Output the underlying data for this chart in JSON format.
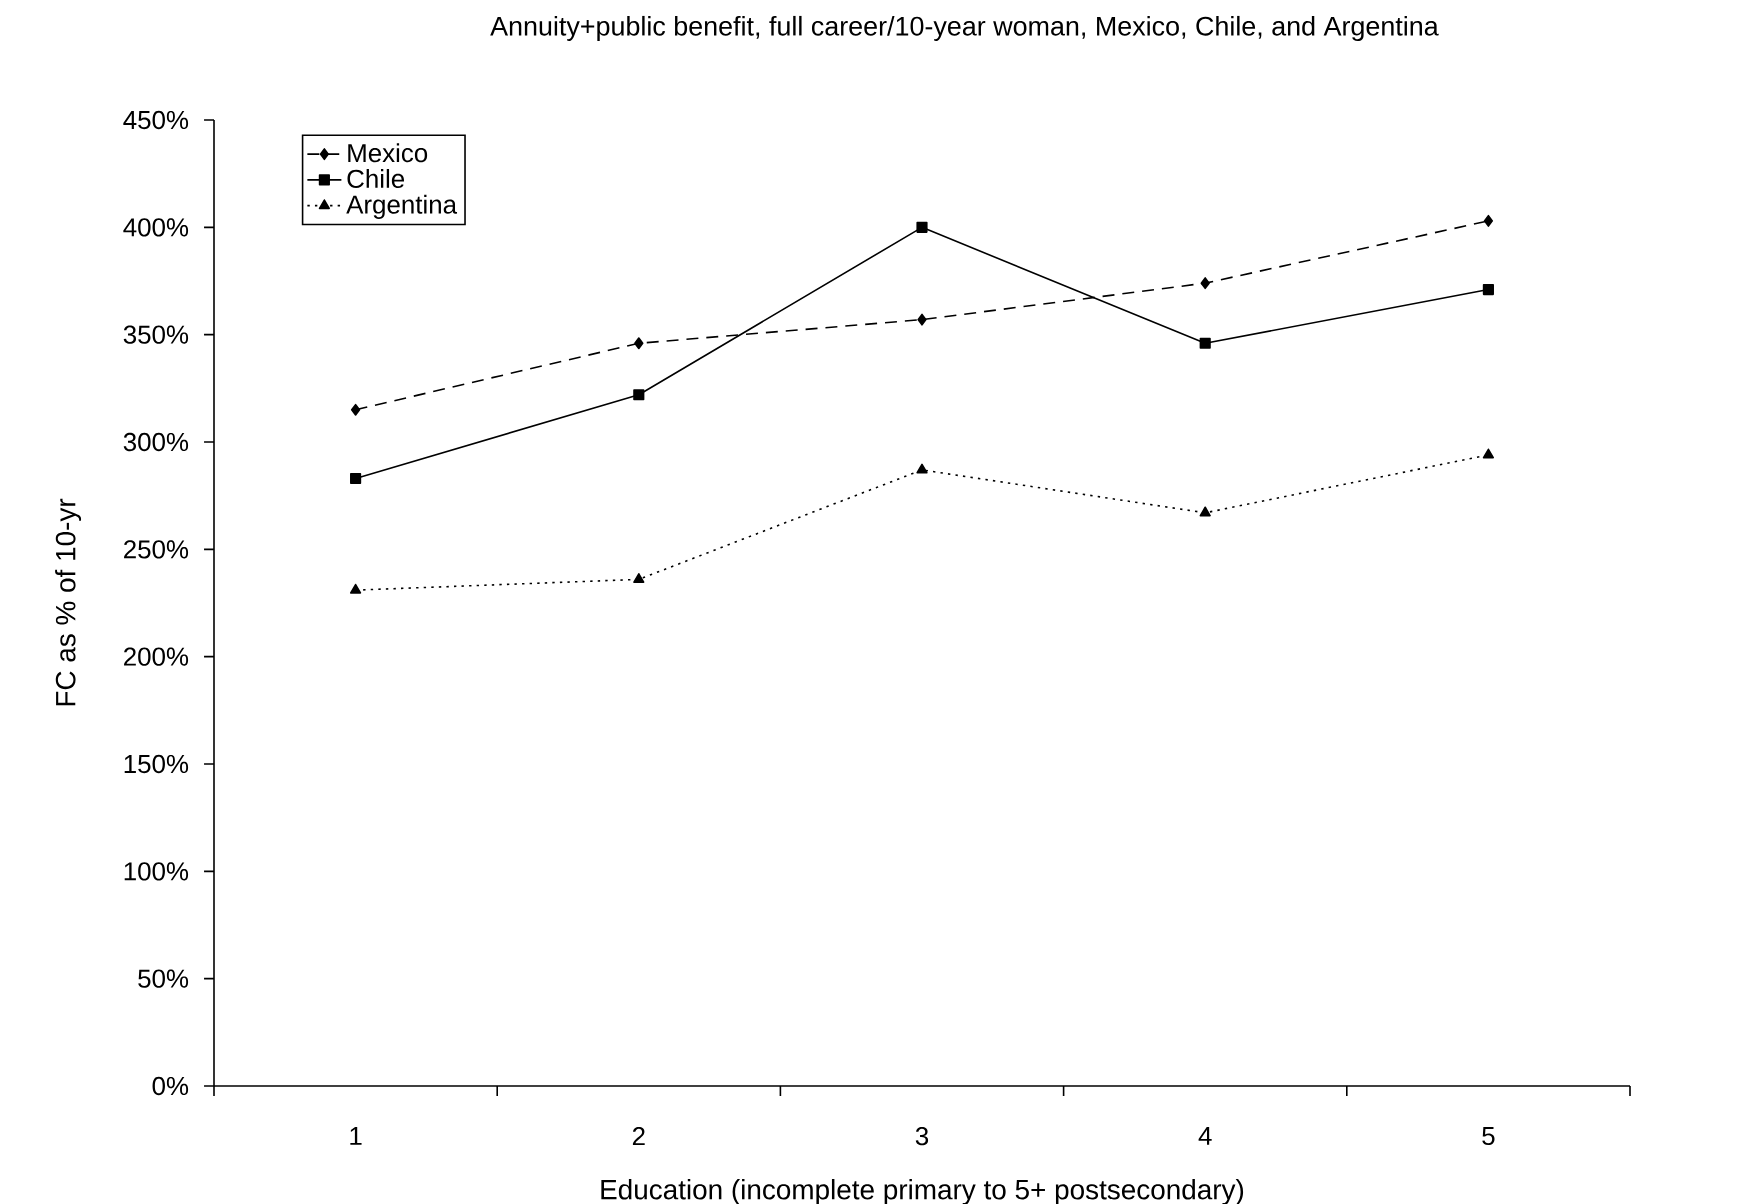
{
  "chart_data": {
    "type": "line",
    "title": "Annuity+public benefit, full career/10-year woman, Mexico, Chile, and Argentina",
    "xlabel": "Education (incomplete primary to 5+ postsecondary)",
    "ylabel": "FC as % of 10-yr",
    "categories": [
      "1",
      "2",
      "3",
      "4",
      "5"
    ],
    "series": [
      {
        "name": "Mexico",
        "color": "#000000",
        "marker": "diamond",
        "line_style": "dashed",
        "values": [
          315,
          346,
          357,
          374,
          403
        ]
      },
      {
        "name": "Chile",
        "color": "#000000",
        "marker": "square",
        "line_style": "solid",
        "values": [
          283,
          322,
          400,
          346,
          371
        ]
      },
      {
        "name": "Argentina",
        "color": "#000000",
        "marker": "triangle",
        "line_style": "dotted",
        "values": [
          231,
          236,
          287,
          267,
          294
        ]
      }
    ],
    "ylim": [
      0,
      450
    ],
    "yticks": [
      {
        "value": 0,
        "label": "0%"
      },
      {
        "value": 50,
        "label": "50%"
      },
      {
        "value": 100,
        "label": "100%"
      },
      {
        "value": 150,
        "label": "150%"
      },
      {
        "value": 200,
        "label": "200%"
      },
      {
        "value": 250,
        "label": "250%"
      },
      {
        "value": 300,
        "label": "300%"
      },
      {
        "value": 350,
        "label": "350%"
      },
      {
        "value": 400,
        "label": "400%"
      },
      {
        "value": 450,
        "label": "450%"
      }
    ],
    "legend": "top left"
  }
}
